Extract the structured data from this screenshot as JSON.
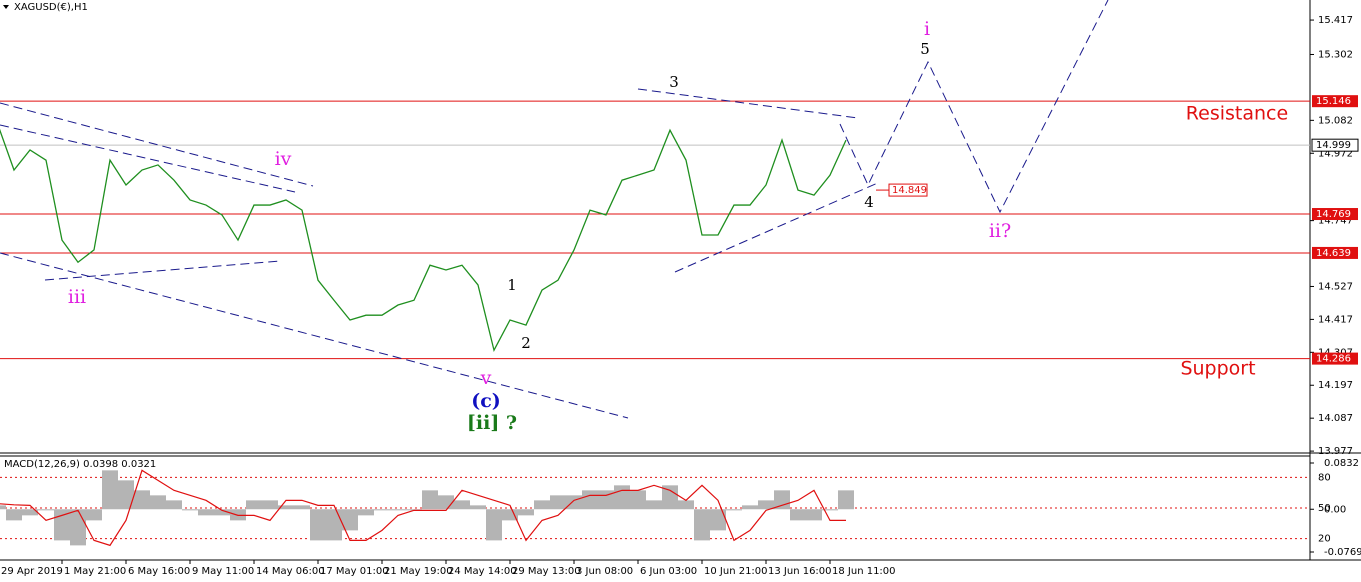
{
  "chart_data": [
    {
      "type": "line",
      "title": "XAGUSD(€),H1",
      "categories": [
        "29 Apr 2019",
        null,
        null,
        null,
        "1 May 21:00",
        null,
        null,
        null,
        "6 May 16:00",
        null,
        null,
        null,
        "9 May 11:00",
        null,
        null,
        null,
        "14 May 06:00",
        null,
        null,
        null,
        "17 May 01:00",
        null,
        null,
        null,
        "21 May 19:00",
        null,
        null,
        null,
        "24 May 14:00",
        null,
        null,
        null,
        "29 May 13:00",
        null,
        null,
        null,
        "3 Jun 08:00",
        null,
        null,
        null,
        "6 Jun 03:00",
        null,
        null,
        null,
        "10 Jun 21:00",
        null,
        null,
        null,
        "13 Jun 16:00",
        null,
        null,
        null,
        "18 Jun 11:00",
        null
      ],
      "series": [
        {
          "color": "#1f8f1f",
          "values": [
            15.066,
            14.916,
            14.983,
            14.949,
            14.682,
            14.608,
            14.649,
            14.949,
            14.866,
            14.916,
            14.933,
            14.882,
            14.816,
            14.799,
            14.766,
            14.682,
            14.799,
            14.799,
            14.816,
            14.782,
            14.548,
            14.481,
            14.415,
            14.431,
            14.431,
            14.465,
            14.481,
            14.598,
            14.582,
            14.598,
            14.532,
            14.314,
            14.415,
            14.398,
            14.515,
            14.548,
            14.649,
            14.782,
            14.766,
            14.882,
            14.899,
            14.916,
            15.049,
            14.949,
            14.699,
            14.699,
            14.799,
            14.799,
            14.866,
            15.016,
            14.849,
            14.832,
            14.899,
            15.016
          ]
        }
      ],
      "ylim": [
        13.974,
        15.484
      ],
      "yticks": [
        15.417,
        15.302,
        15.082,
        14.972,
        14.747,
        14.527,
        14.417,
        14.307,
        14.197,
        14.087,
        13.977
      ],
      "levels": [
        15.146,
        14.769,
        14.639,
        14.286
      ],
      "level_color": "#e01010",
      "last": 14.999,
      "marker_level": 14.849,
      "annotations": [
        "i",
        "5",
        "3",
        "iv",
        "iii",
        "v",
        "(c)",
        "[ii] ?",
        "1",
        "2",
        "4",
        "ii?",
        "Resistance",
        "Support"
      ]
    },
    {
      "type": "bar",
      "title": "MACD(12,26,9) 0.0398 0.0321",
      "series": [
        {
          "style": "bar",
          "color": "#b4b4b4",
          "values": [
            0.007,
            -0.02,
            -0.011,
            -0.002,
            -0.056,
            -0.065,
            -0.02,
            0.07,
            0.052,
            0.034,
            0.025,
            0.016,
            -0.002,
            -0.011,
            -0.011,
            -0.02,
            0.016,
            0.016,
            0.007,
            0.007,
            -0.056,
            -0.056,
            -0.038,
            -0.011,
            -0.002,
            -0.002,
            -0.002,
            0.034,
            0.025,
            0.016,
            0.007,
            -0.056,
            -0.02,
            -0.011,
            0.016,
            0.025,
            0.025,
            0.034,
            0.034,
            0.043,
            0.034,
            0.016,
            0.043,
            0.016,
            -0.056,
            -0.038,
            -0.002,
            0.007,
            0.016,
            0.034,
            -0.02,
            -0.02,
            -0.002,
            0.034
          ]
        },
        {
          "style": "line",
          "color": "#e01010",
          "values": [
            0.01,
            0.008,
            0.007,
            -0.02,
            -0.011,
            -0.002,
            -0.056,
            -0.065,
            -0.02,
            0.07,
            0.052,
            0.034,
            0.025,
            0.016,
            -0.002,
            -0.011,
            -0.011,
            -0.02,
            0.016,
            0.016,
            0.007,
            0.007,
            -0.056,
            -0.056,
            -0.038,
            -0.011,
            -0.002,
            -0.002,
            -0.002,
            0.034,
            0.025,
            0.016,
            0.007,
            -0.056,
            -0.02,
            -0.011,
            0.016,
            0.025,
            0.025,
            0.034,
            0.034,
            0.043,
            0.034,
            0.016,
            0.043,
            0.016,
            -0.056,
            -0.038,
            -0.002,
            0.007,
            0.016,
            0.034,
            -0.02,
            -0.02
          ]
        }
      ],
      "ylim": [
        -0.0895,
        0.094
      ],
      "yticks": [
        0.0832,
        {
          "value": 0,
          "label": "0.00"
        },
        -0.0769
      ],
      "y2lim": [
        0,
        100
      ],
      "y2ticks": [
        80,
        50,
        20
      ]
    }
  ]
}
